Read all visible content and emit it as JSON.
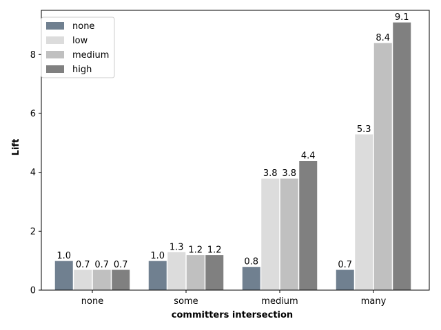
{
  "chart_data": {
    "type": "bar",
    "title": "",
    "xlabel": "committers intersection",
    "ylabel": "Lift",
    "categories": [
      "none",
      "some",
      "medium",
      "many"
    ],
    "ylim": [
      0,
      9.5
    ],
    "yticks": [
      0,
      2,
      4,
      6,
      8
    ],
    "grid": false,
    "legend_position": "top-left",
    "series": [
      {
        "name": "none",
        "color": "#708090",
        "values": [
          1.0,
          1.0,
          0.8,
          0.7
        ],
        "labels": [
          "1.0",
          "1.0",
          "0.8",
          "0.7"
        ]
      },
      {
        "name": "low",
        "color": "#dcdcdc",
        "values": [
          0.7,
          1.3,
          3.8,
          5.3
        ],
        "labels": [
          "0.7",
          "1.3",
          "3.8",
          "5.3"
        ]
      },
      {
        "name": "medium",
        "color": "#c0c0c0",
        "values": [
          0.7,
          1.2,
          3.8,
          8.4
        ],
        "labels": [
          "0.7",
          "1.2",
          "3.8",
          "8.4"
        ]
      },
      {
        "name": "high",
        "color": "#808080",
        "values": [
          0.7,
          1.2,
          4.4,
          9.1
        ],
        "labels": [
          "0.7",
          "1.2",
          "4.4",
          "9.1"
        ]
      }
    ]
  }
}
